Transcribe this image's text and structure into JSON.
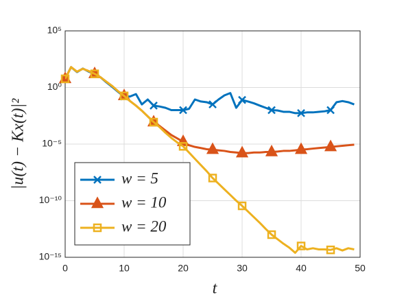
{
  "chart_data": {
    "type": "line",
    "x_label": "t",
    "y_label": "|u(t) − Kx(t)|²",
    "x": [
      0,
      1,
      2,
      3,
      4,
      5,
      6,
      7,
      8,
      9,
      10,
      11,
      12,
      13,
      14,
      15,
      16,
      17,
      18,
      19,
      20,
      21,
      22,
      23,
      24,
      25,
      26,
      27,
      28,
      29,
      30,
      31,
      32,
      33,
      34,
      35,
      36,
      37,
      38,
      39,
      40,
      41,
      42,
      43,
      44,
      45,
      46,
      47,
      48,
      49
    ],
    "series": [
      {
        "name": "w = 5",
        "color": "#0072bd",
        "marker": "x",
        "markevery": 5,
        "values": [
          5.8,
          63,
          23,
          47,
          25,
          16,
          7.9,
          2.8,
          1.1,
          0.4,
          0.16,
          0.16,
          0.26,
          0.032,
          0.087,
          0.025,
          0.021,
          0.016,
          0.01,
          0.01,
          0.01,
          0.013,
          0.087,
          0.058,
          0.05,
          0.032,
          0.087,
          0.2,
          0.32,
          0.016,
          0.079,
          0.058,
          0.04,
          0.025,
          0.016,
          0.01,
          0.0093,
          0.0071,
          0.0071,
          0.0054,
          0.0054,
          0.0063,
          0.0063,
          0.0071,
          0.0079,
          0.01,
          0.05,
          0.063,
          0.05,
          0.032
        ]
      },
      {
        "name": "w = 10",
        "color": "#d95319",
        "marker": "triangle",
        "markevery": 5,
        "values": [
          5.8,
          63,
          25,
          45,
          28,
          16,
          7.9,
          3.2,
          1.3,
          0.45,
          0.18,
          0.063,
          0.025,
          0.0089,
          0.0028,
          0.00087,
          0.0004,
          0.00016,
          6.3e-05,
          3.2e-05,
          1.6e-05,
          7.9e-06,
          5.6e-06,
          4.5e-06,
          3.5e-06,
          3.2e-06,
          2.8e-06,
          2.5e-06,
          2e-06,
          1.8e-06,
          1.6e-06,
          1.6e-06,
          1.8e-06,
          1.8e-06,
          2e-06,
          2e-06,
          2.2e-06,
          2.5e-06,
          2.5e-06,
          2.8e-06,
          3.2e-06,
          3.5e-06,
          4e-06,
          4.5e-06,
          5e-06,
          5.6e-06,
          6.3e-06,
          7.1e-06,
          7.9e-06,
          8.9e-06
        ]
      },
      {
        "name": "w = 20",
        "color": "#edb120",
        "marker": "square",
        "markevery": 5,
        "values": [
          5.8,
          63,
          25,
          45,
          28,
          16,
          7.9,
          3.2,
          1.3,
          0.45,
          0.18,
          0.063,
          0.025,
          0.0089,
          0.0028,
          0.00087,
          0.00032,
          0.0001,
          3.5e-05,
          1.4e-05,
          6.3e-06,
          1.8e-06,
          5e-07,
          1.4e-07,
          4e-08,
          1e-08,
          3.2e-09,
          1e-09,
          3.2e-10,
          1e-10,
          3.5e-11,
          1.1e-11,
          3.5e-12,
          1.1e-12,
          3.2e-13,
          1e-13,
          4e-14,
          1.6e-14,
          7.1e-15,
          2.5e-15,
          1e-14,
          5e-15,
          6.3e-15,
          5e-15,
          5e-15,
          4.5e-15,
          6.3e-15,
          4e-15,
          6.3e-15,
          5e-15
        ]
      }
    ],
    "xlim": [
      0,
      50
    ],
    "xticks": [
      0,
      10,
      20,
      30,
      40,
      50
    ],
    "ylim": [
      1e-15,
      100000
    ],
    "y_scale": "log",
    "yticks": [
      {
        "value": 1e-15,
        "label": "10⁻¹⁵"
      },
      {
        "value": 1e-10,
        "label": "10⁻¹⁰"
      },
      {
        "value": 1e-05,
        "label": "10⁻⁵"
      },
      {
        "value": 1,
        "label": "10⁰"
      },
      {
        "value": 100000,
        "label": "10⁵"
      }
    ],
    "grid": true,
    "legend": "lower left"
  }
}
